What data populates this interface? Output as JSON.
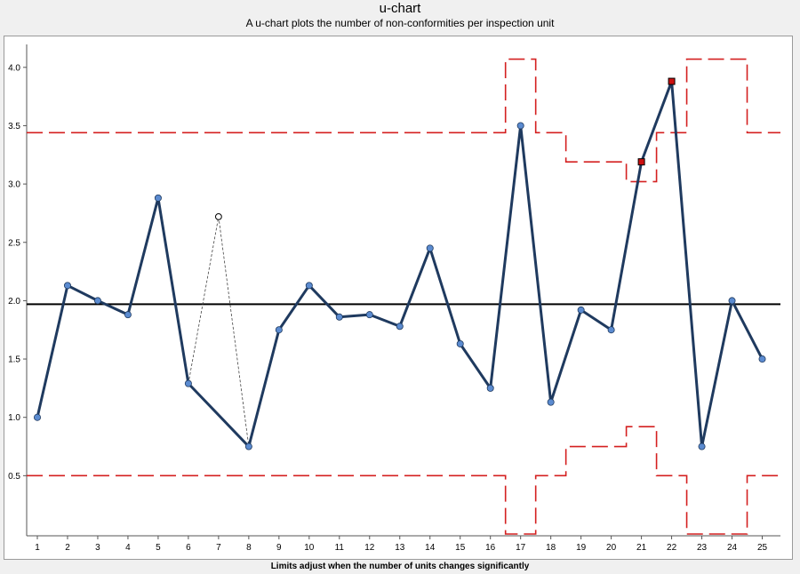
{
  "chart_data": {
    "type": "line",
    "title": "u-chart",
    "subtitle": "A u-chart plots the number of non-conformities per inspection unit",
    "footer": "Limits adjust when the number of units changes significantly",
    "x": [
      1,
      2,
      3,
      4,
      5,
      6,
      7,
      8,
      9,
      10,
      11,
      12,
      13,
      14,
      15,
      16,
      17,
      18,
      19,
      20,
      21,
      22,
      23,
      24,
      25
    ],
    "ylim": [
      0.0,
      4.2
    ],
    "yticks": [
      0.5,
      1.0,
      1.5,
      2.0,
      2.5,
      3.0,
      3.5,
      4.0
    ],
    "ytick_labels": [
      "0.5",
      "1.0",
      "1.5",
      "2.0",
      "2.5",
      "3.0",
      "3.5",
      "4.0"
    ],
    "center_line": 1.97,
    "series": [
      {
        "values": [
          1.0,
          2.13,
          2.0,
          1.88,
          2.88,
          1.29,
          null,
          0.75,
          1.75,
          2.13,
          1.86,
          1.88,
          1.78,
          2.45,
          1.63,
          1.25,
          3.5,
          1.13,
          1.92,
          1.75,
          3.19,
          3.88,
          0.75,
          2.0,
          1.5
        ],
        "color": "#1f3a5f",
        "marker_color": "#5b8bd0"
      }
    ],
    "excluded_point": {
      "x": 7,
      "y": 2.72
    },
    "out_of_control_points": [
      21,
      22
    ],
    "upper_limit": [
      3.44,
      3.44,
      3.44,
      3.44,
      3.44,
      3.44,
      3.44,
      3.44,
      3.44,
      3.44,
      3.44,
      3.44,
      3.44,
      3.44,
      3.44,
      3.44,
      4.07,
      3.44,
      3.19,
      3.19,
      3.02,
      3.44,
      4.07,
      4.07,
      3.44
    ],
    "lower_limit": [
      0.5,
      0.5,
      0.5,
      0.5,
      0.5,
      0.5,
      0.5,
      0.5,
      0.5,
      0.5,
      0.5,
      0.5,
      0.5,
      0.5,
      0.5,
      0.5,
      0.0,
      0.5,
      0.75,
      0.75,
      0.92,
      0.5,
      0.0,
      0.0,
      0.5
    ],
    "colors": {
      "limit": "#d42020",
      "center": "#000000",
      "alarm": "#cc1010"
    },
    "grid": false
  }
}
